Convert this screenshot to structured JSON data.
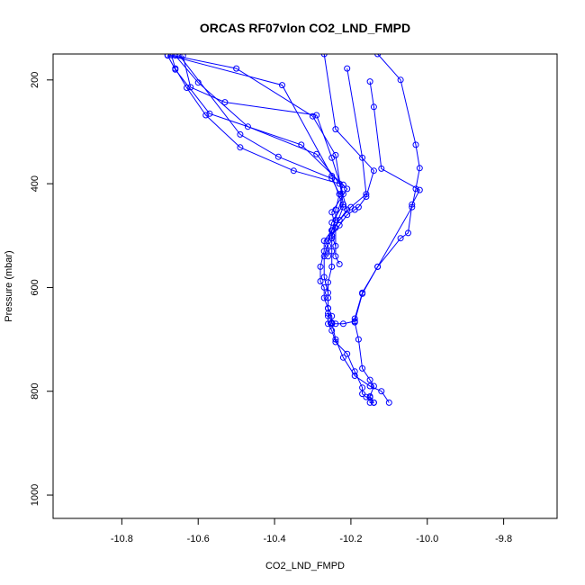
{
  "chart_data": {
    "type": "line",
    "title": "ORCAS RF07vlon CO2_LND_FMPD",
    "xlabel": "CO2_LND_FMPD",
    "ylabel": "Pressure (mbar)",
    "xlim": [
      -10.98,
      -9.66
    ],
    "ylim": [
      1045,
      150
    ],
    "y_inverted": true,
    "x_ticks": [
      -10.8,
      -10.6,
      -10.4,
      -10.2,
      -10.0,
      -9.8
    ],
    "x_tick_labels": [
      "-10.8",
      "-10.6",
      "-10.4",
      "-10.2",
      "-10.0",
      "-9.8"
    ],
    "y_ticks": [
      200,
      400,
      600,
      800,
      1000
    ],
    "y_tick_labels": [
      "200",
      "400",
      "600",
      "800",
      "1000"
    ],
    "grid": false,
    "marker": "open-circle",
    "color": "#0000ff",
    "series": [
      {
        "x": [
          -10.14,
          -10.15,
          -10.15,
          -10.16,
          -10.17,
          -10.17,
          -10.19,
          -10.21,
          -10.24,
          -10.25,
          -10.26,
          -10.26,
          -10.26,
          -10.27,
          -10.27,
          -10.28,
          -10.28,
          -10.27,
          -10.27,
          -10.25,
          -10.24,
          -10.24,
          -10.23,
          -10.22,
          -10.35,
          -10.49,
          -10.58,
          -10.63,
          -10.66,
          -10.67
        ],
        "y": [
          822,
          822,
          812,
          811,
          805,
          793,
          762,
          728,
          705,
          683,
          670,
          655,
          640,
          620,
          600,
          588,
          560,
          530,
          510,
          490,
          470,
          450,
          420,
          402,
          375,
          330,
          268,
          215,
          178,
          152
        ]
      },
      {
        "x": [
          -10.64,
          -10.62,
          -10.53,
          -10.29,
          -10.25,
          -10.22,
          -10.25,
          -10.27,
          -10.27,
          -10.26,
          -10.26,
          -10.25,
          -10.24,
          -10.22,
          -10.19,
          -10.15,
          -10.12,
          -10.1
        ],
        "y": [
          153,
          214,
          243,
          268,
          350,
          420,
          490,
          540,
          580,
          610,
          650,
          668,
          700,
          735,
          770,
          790,
          800,
          822
        ]
      },
      {
        "x": [
          -10.66,
          -10.6,
          -10.47,
          -10.29,
          -10.23,
          -10.21,
          -10.25,
          -10.25,
          -10.25,
          -10.26,
          -10.26,
          -10.26,
          -10.25,
          -10.25,
          -10.25
        ],
        "y": [
          153,
          205,
          290,
          343,
          400,
          450,
          490,
          530,
          560,
          590,
          620,
          640,
          655,
          668,
          670
        ]
      },
      {
        "x": [
          -10.68,
          -10.66,
          -10.57,
          -10.33,
          -10.21,
          -10.25,
          -10.24,
          -10.24,
          -10.23
        ],
        "y": [
          153,
          180,
          265,
          325,
          410,
          455,
          485,
          540,
          555
        ]
      },
      {
        "x": [
          -10.67,
          -10.5,
          -10.3,
          -10.24,
          -10.22,
          -10.25,
          -10.26,
          -10.26,
          -10.26
        ],
        "y": [
          152,
          178,
          270,
          345,
          440,
          475,
          510,
          520,
          540
        ]
      },
      {
        "x": [
          -10.68,
          -10.38,
          -10.25,
          -10.22,
          -10.25
        ],
        "y": [
          152,
          210,
          385,
          445,
          500
        ]
      },
      {
        "x": [
          -10.65,
          -10.49,
          -10.39,
          -10.25,
          -10.23
        ],
        "y": [
          152,
          305,
          348,
          390,
          420
        ]
      },
      {
        "x": [
          -10.21,
          -10.17,
          -10.16,
          -10.2,
          -10.23,
          -10.25,
          -10.25
        ],
        "y": [
          178,
          350,
          420,
          445,
          470,
          490,
          505
        ]
      },
      {
        "x": [
          -10.27,
          -10.24,
          -10.14,
          -10.16,
          -10.18,
          -10.19,
          -10.21,
          -10.23,
          -10.25,
          -10.24
        ],
        "y": [
          150,
          295,
          375,
          425,
          445,
          450,
          460,
          480,
          500,
          520
        ]
      },
      {
        "x": [
          -10.15,
          -10.14,
          -10.12,
          -10.02,
          -10.04,
          -10.05,
          -10.07,
          -10.13,
          -10.17,
          -10.19,
          -10.19,
          -10.18,
          -10.17,
          -10.15,
          -10.14,
          -10.15,
          -10.14
        ],
        "y": [
          203,
          252,
          371,
          412,
          440,
          495,
          505,
          560,
          610,
          660,
          667,
          700,
          756,
          778,
          790,
          810,
          822
        ]
      },
      {
        "x": [
          -10.13,
          -10.07,
          -10.03,
          -10.02,
          -10.03,
          -10.04,
          -10.13,
          -10.17,
          -10.19,
          -10.22,
          -10.24,
          -10.25,
          -10.25
        ],
        "y": [
          150,
          200,
          325,
          370,
          410,
          445,
          560,
          612,
          665,
          670,
          670,
          670,
          670
        ]
      }
    ]
  }
}
